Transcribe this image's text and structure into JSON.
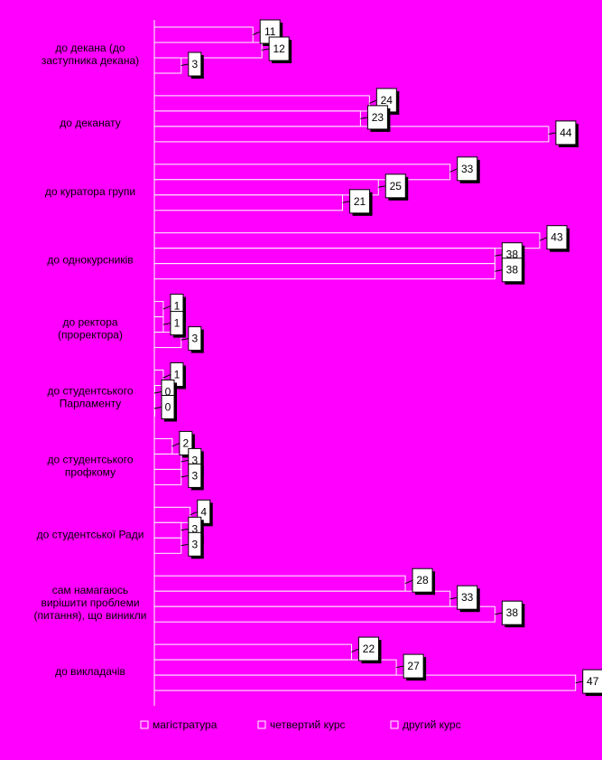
{
  "chart_data": {
    "type": "bar",
    "orientation": "horizontal",
    "title": "",
    "xlabel": "",
    "ylabel": "",
    "xlim": [
      0,
      50
    ],
    "grid": false,
    "legend_position": "bottom",
    "categories": [
      [
        "до декана (до",
        "заступника декана)"
      ],
      [
        "до деканату"
      ],
      [
        "до куратора групи"
      ],
      [
        "до однокурсників"
      ],
      [
        "до ректора",
        "(проректора)"
      ],
      [
        "до студентського",
        "Парламенту"
      ],
      [
        "до студентського",
        "профкому"
      ],
      [
        "до студентської Ради"
      ],
      [
        "сам намагаюсь",
        "вирішити проблеми",
        "(питання), що виникли"
      ],
      [
        "до викладачів"
      ]
    ],
    "series": [
      {
        "name": "магістратура",
        "values": [
          11,
          24,
          33,
          43,
          1,
          1,
          2,
          4,
          28,
          22
        ]
      },
      {
        "name": "четвертий курс",
        "values": [
          12,
          23,
          25,
          38,
          1,
          0,
          3,
          3,
          33,
          27
        ]
      },
      {
        "name": "другий курс",
        "values": [
          3,
          44,
          21,
          38,
          3,
          0,
          3,
          3,
          38,
          47
        ]
      }
    ],
    "colors": {
      "background": "#ff00ff",
      "bar_fill": "#ff00ff",
      "bar_stroke": "#ffffff",
      "label_box": "#ffffff",
      "label_shadow": "#000000"
    }
  }
}
